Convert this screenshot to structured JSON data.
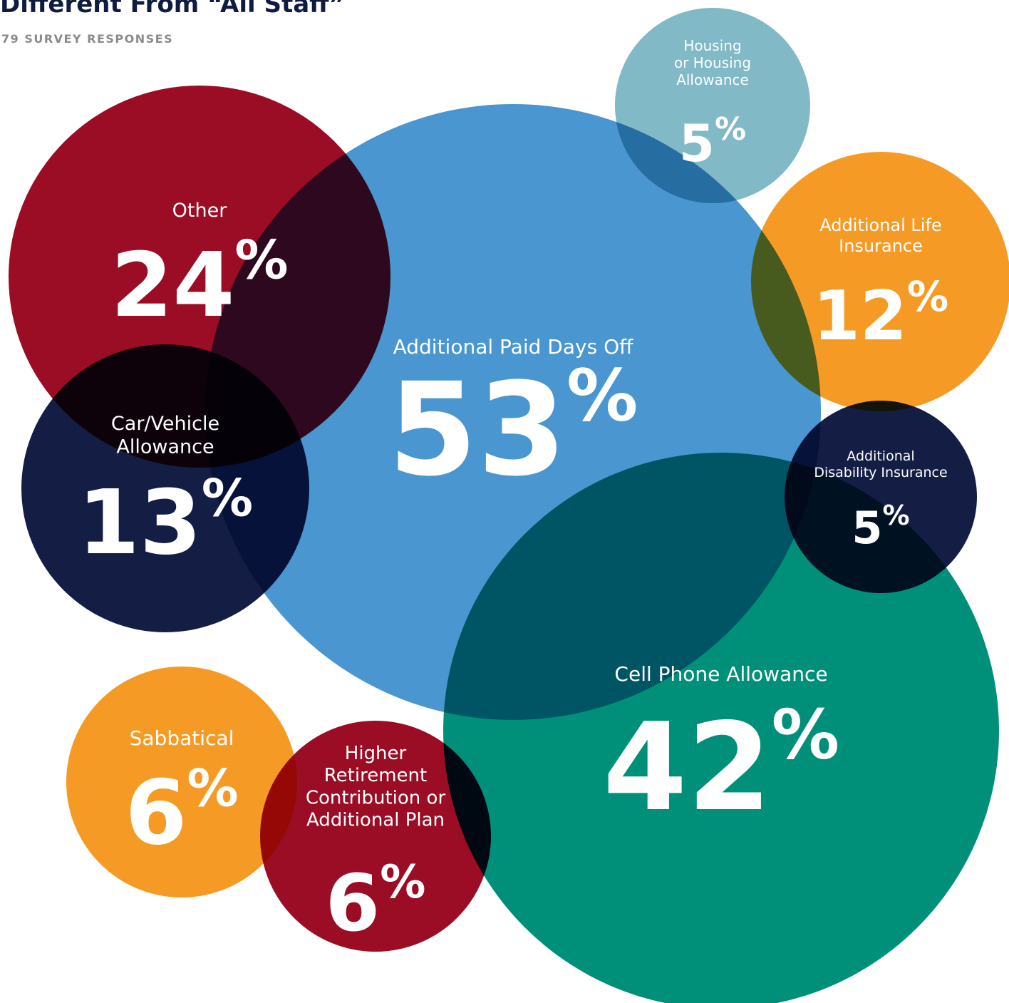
{
  "chart_data": {
    "type": "bubble",
    "title": "Different From “All Staff”",
    "subtitle": "79 SURVEY RESPONSES",
    "bubbles": [
      {
        "label": "Additional Paid Days Off",
        "value": 53,
        "display": "53",
        "color": "#4a96d0"
      },
      {
        "label": "Cell Phone Allowance",
        "value": 42,
        "display": "42",
        "color": "#00907a"
      },
      {
        "label": "Other",
        "value": 24,
        "display": "24",
        "color": "#9b0d24"
      },
      {
        "label": "Car/Vehicle Allowance",
        "value": 13,
        "display": "13",
        "color": "#141e45"
      },
      {
        "label": "Additional Life Insurance",
        "value": 12,
        "display": "12",
        "color": "#f59b25"
      },
      {
        "label": "Housing or Housing Allowance",
        "value": 5,
        "display": "5",
        "color": "#81b9c6"
      },
      {
        "label": "Additional Disability Insurance",
        "value": 5,
        "display": "5",
        "color": "#141e45"
      },
      {
        "label": "Sabbatical",
        "value": 6,
        "display": "6",
        "color": "#f59b25"
      },
      {
        "label": "Higher Retirement Contribution or Additional Plan",
        "value": 6,
        "display": "6",
        "color": "#9b0d24"
      }
    ],
    "value_suffix": "%"
  }
}
